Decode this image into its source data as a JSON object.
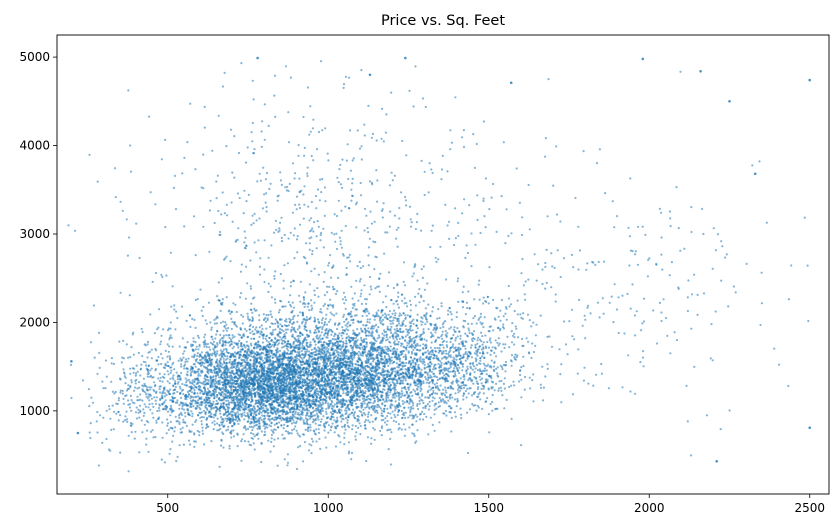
{
  "chart_data": {
    "type": "scatter",
    "title": "Price vs. Sq. Feet",
    "xlabel": "",
    "ylabel": "",
    "xlim": [
      155,
      2560
    ],
    "ylim": [
      60,
      5250
    ],
    "x_ticks": [
      500,
      1000,
      1500,
      2000,
      2500
    ],
    "y_ticks": [
      1000,
      2000,
      3000,
      4000,
      5000
    ],
    "grid": false,
    "legend": "none",
    "marker_color": "#1f77b4",
    "marker_opacity": 0.55,
    "series": [
      {
        "point_count_estimate": 20000,
        "clusters": [
          {
            "x_center": 780,
            "y_center": 1150,
            "x_spread": 150,
            "y_spread": 380,
            "weight": 0.42
          },
          {
            "x_center": 1080,
            "y_center": 1300,
            "x_spread": 170,
            "y_spread": 430,
            "weight": 0.38
          },
          {
            "x_center": 1400,
            "y_center": 1450,
            "x_spread": 120,
            "y_spread": 380,
            "weight": 0.08
          },
          {
            "x_center": 950,
            "y_center": 2900,
            "x_spread": 280,
            "y_spread": 850,
            "weight": 0.06
          },
          {
            "x_center": 1900,
            "y_center": 2000,
            "x_spread": 320,
            "y_spread": 900,
            "weight": 0.03
          },
          {
            "x_center": 430,
            "y_center": 1000,
            "x_spread": 80,
            "y_spread": 450,
            "weight": 0.03
          }
        ],
        "notable_points": [
          {
            "x": 2500,
            "y": 4740
          },
          {
            "x": 2500,
            "y": 810
          },
          {
            "x": 2210,
            "y": 430
          },
          {
            "x": 200,
            "y": 1560
          },
          {
            "x": 220,
            "y": 750
          },
          {
            "x": 2330,
            "y": 3680
          },
          {
            "x": 2250,
            "y": 4500
          },
          {
            "x": 2160,
            "y": 4840
          },
          {
            "x": 1980,
            "y": 4980
          },
          {
            "x": 780,
            "y": 4990
          },
          {
            "x": 1240,
            "y": 4990
          },
          {
            "x": 1130,
            "y": 4800
          },
          {
            "x": 1570,
            "y": 4710
          }
        ]
      }
    ]
  }
}
